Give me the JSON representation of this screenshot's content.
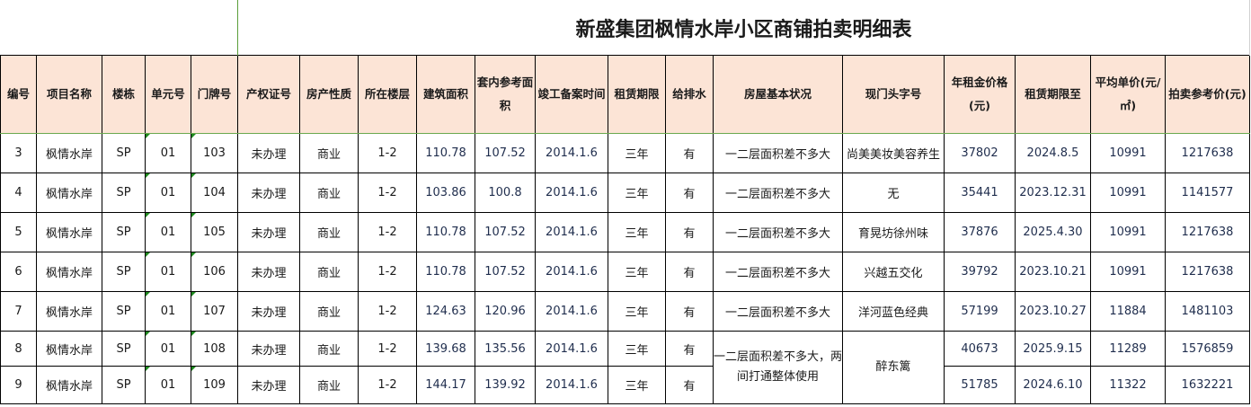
{
  "title": "新盛集团枫情水岸小区商铺拍卖明细表",
  "headers": [
    "编号",
    "项目名称",
    "楼栋",
    "单元号",
    "门牌号",
    "产权证号",
    "房产性质",
    "所在楼层",
    "建筑面积",
    "套内参考面积",
    "竣工备案时间",
    "租赁期限",
    "给排水",
    "房屋基本状况",
    "现门头字号",
    "年租金价格(元)",
    "租赁期限至",
    "平均单价(元/㎡)",
    "拍卖参考价(元)"
  ],
  "rows": [
    {
      "no": "3",
      "project": "枫情水岸",
      "building": "SP",
      "unit": "01",
      "door": "103",
      "cert": "未办理",
      "nature": "商业",
      "floor": "1-2",
      "area": "110.78",
      "inner": "107.52",
      "completed": "2014.1.6",
      "lease": "三年",
      "water": "有",
      "status": "一二层面积差不多大",
      "sign": "尚美美妆美容养生",
      "rent": "37802",
      "lease_to": "2024.8.5",
      "unit_price": "10991",
      "ref_price": "1217638"
    },
    {
      "no": "4",
      "project": "枫情水岸",
      "building": "SP",
      "unit": "01",
      "door": "104",
      "cert": "未办理",
      "nature": "商业",
      "floor": "1-2",
      "area": "103.86",
      "inner": "100.8",
      "completed": "2014.1.6",
      "lease": "三年",
      "water": "有",
      "status": "一二层面积差不多大",
      "sign": "无",
      "rent": "35441",
      "lease_to": "2023.12.31",
      "unit_price": "10991",
      "ref_price": "1141577"
    },
    {
      "no": "5",
      "project": "枫情水岸",
      "building": "SP",
      "unit": "01",
      "door": "105",
      "cert": "未办理",
      "nature": "商业",
      "floor": "1-2",
      "area": "110.78",
      "inner": "107.52",
      "completed": "2014.1.6",
      "lease": "三年",
      "water": "有",
      "status": "一二层面积差不多大",
      "sign": "育晃坊徐州味",
      "rent": "37876",
      "lease_to": "2025.4.30",
      "unit_price": "10991",
      "ref_price": "1217638"
    },
    {
      "no": "6",
      "project": "枫情水岸",
      "building": "SP",
      "unit": "01",
      "door": "106",
      "cert": "未办理",
      "nature": "商业",
      "floor": "1-2",
      "area": "110.78",
      "inner": "107.52",
      "completed": "2014.1.6",
      "lease": "三年",
      "water": "有",
      "status": "一二层面积差不多大",
      "sign": "兴越五交化",
      "rent": "39792",
      "lease_to": "2023.10.21",
      "unit_price": "10991",
      "ref_price": "1217638"
    },
    {
      "no": "7",
      "project": "枫情水岸",
      "building": "SP",
      "unit": "01",
      "door": "107",
      "cert": "未办理",
      "nature": "商业",
      "floor": "1-2",
      "area": "124.63",
      "inner": "120.96",
      "completed": "2014.1.6",
      "lease": "三年",
      "water": "有",
      "status": "一二层面积差不多大",
      "sign": "洋河蓝色经典",
      "rent": "57199",
      "lease_to": "2023.10.27",
      "unit_price": "11884",
      "ref_price": "1481103"
    },
    {
      "no": "8",
      "project": "枫情水岸",
      "building": "SP",
      "unit": "01",
      "door": "108",
      "cert": "未办理",
      "nature": "商业",
      "floor": "1-2",
      "area": "139.68",
      "inner": "135.56",
      "completed": "2014.1.6",
      "lease": "三年",
      "water": "有",
      "status": "一二层面积差不多大，两间打通整体使用",
      "sign": "醉东篱",
      "rent": "40673",
      "lease_to": "2025.9.15",
      "unit_price": "11289",
      "ref_price": "1576859"
    },
    {
      "no": "9",
      "project": "枫情水岸",
      "building": "SP",
      "unit": "01",
      "door": "109",
      "cert": "未办理",
      "nature": "商业",
      "floor": "1-2",
      "area": "144.17",
      "inner": "139.92",
      "completed": "2014.1.6",
      "lease": "三年",
      "water": "有",
      "rent": "51785",
      "lease_to": "2024.6.10",
      "unit_price": "11322",
      "ref_price": "1632221"
    }
  ]
}
